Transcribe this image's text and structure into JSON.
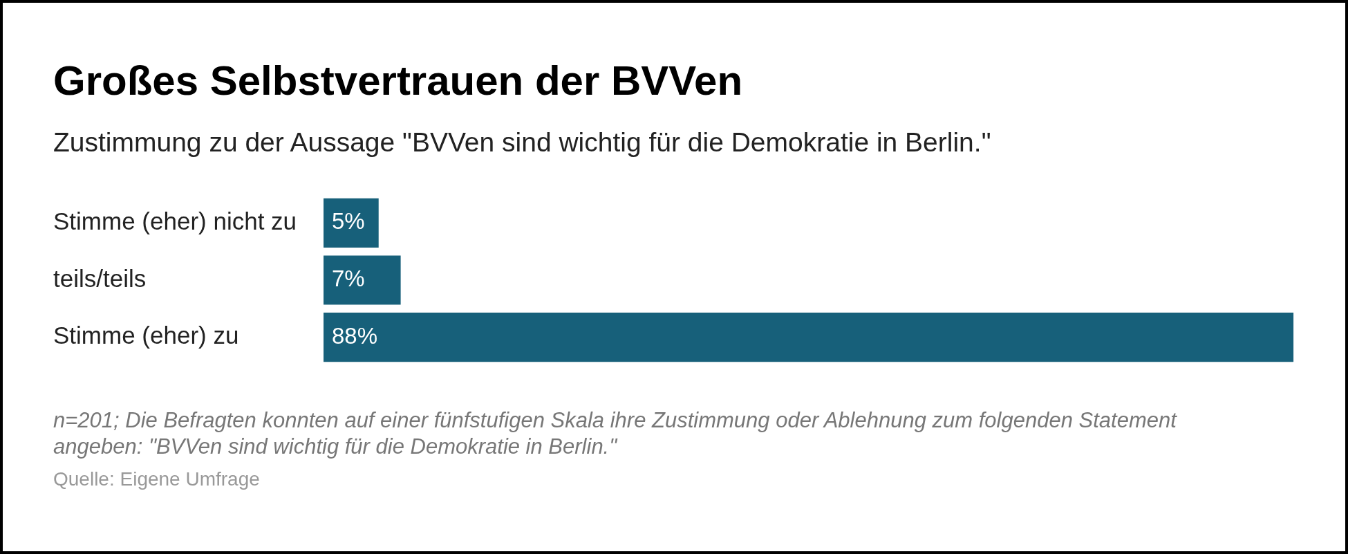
{
  "chart_data": {
    "type": "bar",
    "orientation": "horizontal",
    "title": "Großes Selbstvertrauen der BVVen",
    "subtitle": "Zustimmung zu der Aussage \"BVVen sind wichtig für die Demokratie in Berlin.\"",
    "categories": [
      "Stimme (eher) nicht zu",
      "teils/teils",
      "Stimme (eher) zu"
    ],
    "values": [
      5,
      7,
      88
    ],
    "value_labels": [
      "5%",
      "7%",
      "88%"
    ],
    "color": "#17607a",
    "legend": false,
    "tick_labels": "y",
    "annotations": [
      "n=201; Die Befragten konnten auf einer fünfstufigen Skala ihre Zustimmung oder Ablehnung zum folgenden Statement angeben: \"BVVen sind wichtig für die Demokratie in Berlin.\"",
      "Quelle: Eigene Umfrage"
    ]
  }
}
